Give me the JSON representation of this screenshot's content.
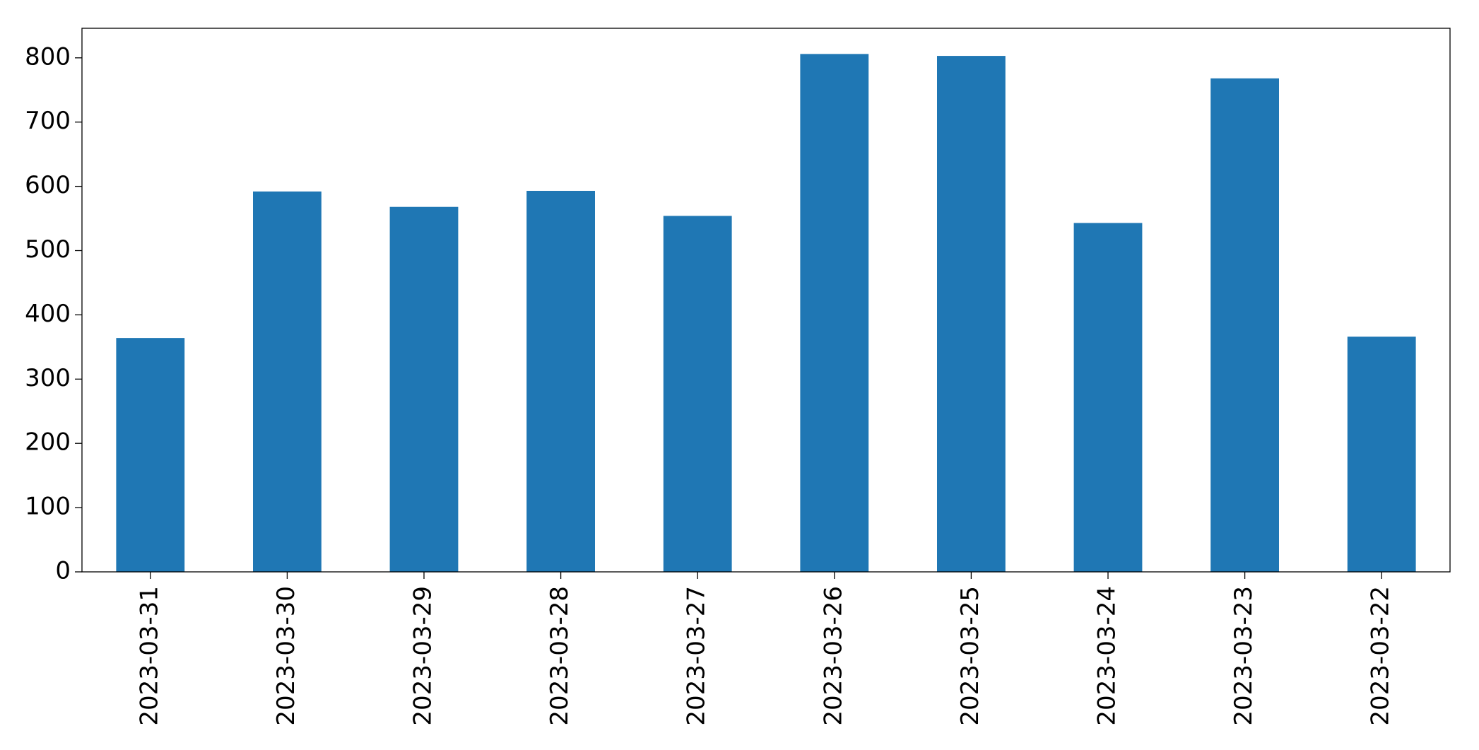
{
  "chart_data": {
    "type": "bar",
    "categories": [
      "2023-03-31",
      "2023-03-30",
      "2023-03-29",
      "2023-03-28",
      "2023-03-27",
      "2023-03-26",
      "2023-03-25",
      "2023-03-24",
      "2023-03-23",
      "2023-03-22"
    ],
    "values": [
      364,
      592,
      568,
      593,
      554,
      806,
      803,
      543,
      768,
      366
    ],
    "color": "#1f77b4",
    "ylim": [
      0,
      846
    ],
    "yticks": [
      0,
      100,
      200,
      300,
      400,
      500,
      600,
      700,
      800
    ],
    "grid": false
  }
}
